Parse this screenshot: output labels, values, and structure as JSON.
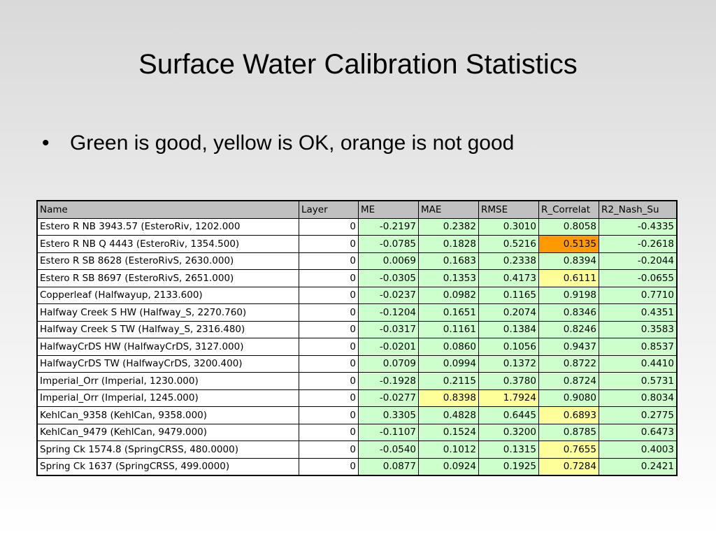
{
  "slide": {
    "title": "Surface Water Calibration Statistics",
    "bullet": "Green is good, yellow is OK, orange is not good"
  },
  "colors": {
    "green": "#ccffcc",
    "yellow": "#ffff99",
    "orange": "#ff9900",
    "header": "#c0c0c0"
  },
  "table": {
    "headers": [
      "Name",
      "Layer",
      "ME",
      "MAE",
      "RMSE",
      "R_Correlat",
      "R2_Nash_Su"
    ],
    "rows": [
      {
        "cells": [
          "Estero R NB 3943.57 (EsteroRiv, 1202.000",
          "0",
          "-0.2197",
          "0.2382",
          "0.3010",
          "0.8058",
          "-0.4335"
        ],
        "status": [
          "w",
          "w",
          "g",
          "g",
          "g",
          "g",
          "g"
        ]
      },
      {
        "cells": [
          "Estero R NB Q 4443 (EsteroRiv, 1354.500)",
          "0",
          "-0.0785",
          "0.1828",
          "0.5216",
          "0.5135",
          "-0.2618"
        ],
        "status": [
          "w",
          "w",
          "g",
          "g",
          "g",
          "o",
          "g"
        ]
      },
      {
        "cells": [
          "Estero R SB 8628 (EsteroRivS, 2630.000)",
          "0",
          "0.0069",
          "0.1683",
          "0.2338",
          "0.8394",
          "-0.2044"
        ],
        "status": [
          "w",
          "w",
          "g",
          "g",
          "g",
          "g",
          "g"
        ]
      },
      {
        "cells": [
          "Estero R SB 8697 (EsteroRivS, 2651.000)",
          "0",
          "-0.0305",
          "0.1353",
          "0.4173",
          "0.6111",
          "-0.0655"
        ],
        "status": [
          "w",
          "w",
          "g",
          "g",
          "g",
          "y",
          "g"
        ]
      },
      {
        "cells": [
          "Copperleaf (Halfwayup, 2133.600)",
          "0",
          "-0.0237",
          "0.0982",
          "0.1165",
          "0.9198",
          "0.7710"
        ],
        "status": [
          "w",
          "w",
          "g",
          "g",
          "g",
          "g",
          "g"
        ]
      },
      {
        "cells": [
          "Halfway Creek S HW (Halfway_S, 2270.760)",
          "0",
          "-0.1204",
          "0.1651",
          "0.2074",
          "0.8346",
          "0.4351"
        ],
        "status": [
          "w",
          "w",
          "g",
          "g",
          "g",
          "g",
          "g"
        ]
      },
      {
        "cells": [
          "Halfway Creek S TW (Halfway_S, 2316.480)",
          "0",
          "-0.0317",
          "0.1161",
          "0.1384",
          "0.8246",
          "0.3583"
        ],
        "status": [
          "w",
          "w",
          "g",
          "g",
          "g",
          "g",
          "g"
        ]
      },
      {
        "cells": [
          "HalfwayCrDS HW (HalfwayCrDS, 3127.000)",
          "0",
          "-0.0201",
          "0.0860",
          "0.1056",
          "0.9437",
          "0.8537"
        ],
        "status": [
          "w",
          "w",
          "g",
          "g",
          "g",
          "g",
          "g"
        ]
      },
      {
        "cells": [
          "HalfwayCrDS TW (HalfwayCrDS, 3200.400)",
          "0",
          "0.0709",
          "0.0994",
          "0.1372",
          "0.8722",
          "0.4410"
        ],
        "status": [
          "w",
          "w",
          "g",
          "g",
          "g",
          "g",
          "g"
        ]
      },
      {
        "cells": [
          "Imperial_Orr (Imperial, 1230.000)",
          "0",
          "-0.1928",
          "0.2115",
          "0.3780",
          "0.8724",
          "0.5731"
        ],
        "status": [
          "w",
          "w",
          "g",
          "g",
          "g",
          "g",
          "g"
        ]
      },
      {
        "cells": [
          "Imperial_Orr (Imperial, 1245.000)",
          "0",
          "-0.0277",
          "0.8398",
          "1.7924",
          "0.9080",
          "0.8034"
        ],
        "status": [
          "w",
          "w",
          "g",
          "y",
          "y",
          "g",
          "g"
        ]
      },
      {
        "cells": [
          "KehlCan_9358 (KehlCan, 9358.000)",
          "0",
          "0.3305",
          "0.4828",
          "0.6445",
          "0.6893",
          "0.2775"
        ],
        "status": [
          "w",
          "w",
          "g",
          "g",
          "g",
          "y",
          "g"
        ]
      },
      {
        "cells": [
          "KehlCan_9479 (KehlCan, 9479.000)",
          "0",
          "-0.1107",
          "0.1524",
          "0.3200",
          "0.8785",
          "0.6473"
        ],
        "status": [
          "w",
          "w",
          "g",
          "g",
          "g",
          "g",
          "g"
        ]
      },
      {
        "cells": [
          "Spring Ck 1574.8 (SpringCRSS, 480.0000)",
          "0",
          "-0.0540",
          "0.1012",
          "0.1315",
          "0.7655",
          "0.4003"
        ],
        "status": [
          "w",
          "w",
          "g",
          "g",
          "g",
          "y",
          "g"
        ]
      },
      {
        "cells": [
          "Spring Ck 1637 (SpringCRSS, 499.0000)",
          "0",
          "0.0877",
          "0.0924",
          "0.1925",
          "0.7284",
          "0.2421"
        ],
        "status": [
          "w",
          "w",
          "g",
          "g",
          "g",
          "y",
          "g"
        ]
      }
    ]
  }
}
